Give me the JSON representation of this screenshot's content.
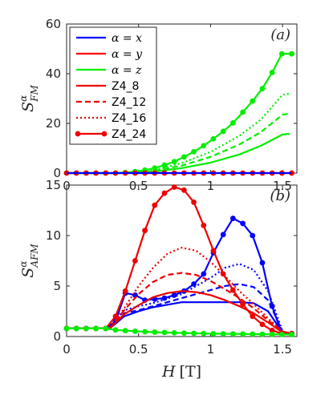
{
  "chart_data": [
    {
      "type": "line",
      "panel_label": "(a)",
      "ylabel_base": "S",
      "ylabel_sup": "α",
      "ylabel_sub": "FM",
      "xlim": [
        0,
        1.6
      ],
      "ylim": [
        0,
        60
      ],
      "xticks": [
        "0",
        "0.5",
        "1",
        "1.5"
      ],
      "yticks": [
        "0",
        "20",
        "40",
        "60"
      ],
      "legend": {
        "position": "upper-left",
        "entries": [
          {
            "label": "α = x",
            "color": "#0000ff",
            "style": "solid"
          },
          {
            "label": "α = y",
            "color": "#ff0000",
            "style": "solid"
          },
          {
            "label": "α = z",
            "color": "#00ee00",
            "style": "solid"
          },
          {
            "label": "Z4_8",
            "color": "#ee0000",
            "style": "solid"
          },
          {
            "label": "Z4_12",
            "color": "#ee0000",
            "style": "dashed"
          },
          {
            "label": "Z4_16",
            "color": "#ee0000",
            "style": "dotted"
          },
          {
            "label": "Z4_24",
            "color": "#ee0000",
            "style": "solid-marker"
          }
        ]
      },
      "series": [
        {
          "color": "#00ee00",
          "style": "solid",
          "x": [
            0,
            0.3,
            0.5,
            0.6,
            0.8,
            1.0,
            1.2,
            1.35,
            1.5,
            1.55
          ],
          "y": [
            0,
            0,
            0.1,
            0.5,
            2.0,
            4.2,
            7.5,
            11.0,
            15.5,
            15.8
          ]
        },
        {
          "color": "#00ee00",
          "style": "dashed",
          "x": [
            0,
            0.3,
            0.5,
            0.6,
            0.8,
            1.0,
            1.2,
            1.35,
            1.5,
            1.55
          ],
          "y": [
            0,
            0,
            0.2,
            0.8,
            3.0,
            6.5,
            11.5,
            16.5,
            23.5,
            24
          ]
        },
        {
          "color": "#00ee00",
          "style": "dotted",
          "x": [
            0,
            0.3,
            0.5,
            0.6,
            0.8,
            1.0,
            1.2,
            1.35,
            1.5,
            1.55
          ],
          "y": [
            0,
            0,
            0.25,
            1.0,
            4.0,
            8.5,
            15.0,
            21.5,
            31.5,
            32
          ]
        },
        {
          "color": "#00ee00",
          "style": "marker",
          "x": [
            0,
            0.068,
            0.136,
            0.204,
            0.272,
            0.34,
            0.408,
            0.476,
            0.544,
            0.612,
            0.68,
            0.748,
            0.816,
            0.884,
            0.952,
            1.02,
            1.088,
            1.156,
            1.224,
            1.292,
            1.36,
            1.428,
            1.496,
            1.564
          ],
          "y": [
            0,
            0,
            0,
            0,
            0,
            0,
            0.2,
            0.6,
            1.2,
            2.0,
            3.2,
            4.6,
            6.5,
            8.6,
            11.0,
            13.8,
            16.8,
            20.2,
            24.5,
            29,
            34,
            40.5,
            48,
            48
          ]
        },
        {
          "color": "#ee0000",
          "style": "marker",
          "x": [
            0,
            0.068,
            0.136,
            0.204,
            0.272,
            0.34,
            0.408,
            0.476,
            0.544,
            0.612,
            0.68,
            0.748,
            0.816,
            0.884,
            0.952,
            1.02,
            1.088,
            1.156,
            1.224,
            1.292,
            1.36,
            1.428,
            1.496,
            1.564
          ],
          "y": [
            0,
            0,
            0,
            0,
            0,
            0,
            0,
            0,
            0,
            0,
            0,
            0,
            0,
            0,
            0,
            0,
            0,
            0,
            0,
            0,
            0,
            0,
            0,
            0
          ]
        },
        {
          "color": "#0000ff",
          "style": "solid",
          "x": [
            0,
            1.564
          ],
          "y": [
            0,
            0
          ]
        }
      ]
    },
    {
      "type": "line",
      "panel_label": "(b)",
      "ylabel_base": "S",
      "ylabel_sup": "α",
      "ylabel_sub": "AFM",
      "xlabel_var": "H",
      "xlabel_unit": "[T]",
      "xlim": [
        0,
        1.6
      ],
      "ylim": [
        0,
        15
      ],
      "xticks": [
        "0",
        "0.5",
        "1",
        "1.5"
      ],
      "yticks": [
        "0",
        "5",
        "10",
        "15"
      ],
      "series": [
        {
          "color": "#0000ff",
          "style": "marker",
          "x": [
            0,
            0.068,
            0.136,
            0.204,
            0.272,
            0.34,
            0.408,
            0.476,
            0.544,
            0.612,
            0.68,
            0.748,
            0.816,
            0.884,
            0.952,
            1.02,
            1.088,
            1.156,
            1.224,
            1.292,
            1.36,
            1.428,
            1.496,
            1.564
          ],
          "y": [
            0.8,
            0.8,
            0.8,
            0.8,
            0.8,
            1.5,
            4.3,
            4.1,
            3.6,
            3.7,
            3.8,
            4.1,
            4.5,
            5.2,
            6.2,
            8.3,
            10.1,
            11.7,
            11.2,
            10.0,
            7.3,
            3.0,
            0.3,
            0.3
          ]
        },
        {
          "color": "#0000ff",
          "style": "dotted",
          "x": [
            0,
            0.3,
            0.4,
            0.5,
            0.6,
            0.8,
            1.0,
            1.1,
            1.2,
            1.3,
            1.4,
            1.5,
            1.56
          ],
          "y": [
            0.8,
            0.8,
            2.6,
            3.0,
            3.3,
            4.2,
            5.8,
            6.8,
            7.2,
            6.6,
            4.5,
            0.5,
            0.3
          ]
        },
        {
          "color": "#0000ff",
          "style": "dashed",
          "x": [
            0,
            0.3,
            0.4,
            0.5,
            0.6,
            0.8,
            1.0,
            1.1,
            1.2,
            1.3,
            1.4,
            1.5,
            1.56
          ],
          "y": [
            0.8,
            0.8,
            2.3,
            2.6,
            3.0,
            3.8,
            4.6,
            5.0,
            5.2,
            4.9,
            3.6,
            0.5,
            0.3
          ]
        },
        {
          "color": "#0000ff",
          "style": "solid",
          "x": [
            0,
            0.3,
            0.4,
            0.5,
            0.6,
            0.8,
            1.0,
            1.1,
            1.2,
            1.3,
            1.4,
            1.5,
            1.56
          ],
          "y": [
            0.8,
            0.8,
            2.0,
            2.5,
            2.9,
            3.4,
            3.4,
            3.4,
            3.4,
            3.3,
            2.5,
            0.4,
            0.3
          ]
        },
        {
          "color": "#ee0000",
          "style": "marker",
          "x": [
            0,
            0.068,
            0.136,
            0.204,
            0.272,
            0.34,
            0.408,
            0.476,
            0.544,
            0.612,
            0.68,
            0.748,
            0.816,
            0.884,
            0.952,
            1.02,
            1.088,
            1.156,
            1.224,
            1.292,
            1.36,
            1.428,
            1.496,
            1.564
          ],
          "y": [
            0.8,
            0.8,
            0.8,
            0.8,
            0.8,
            2.0,
            4.5,
            7.5,
            10.5,
            13.0,
            14.2,
            14.8,
            14.5,
            13.3,
            11.0,
            8.5,
            6.2,
            4.6,
            3.2,
            2.0,
            1.2,
            0.6,
            0.3,
            0.3
          ]
        },
        {
          "color": "#ee0000",
          "style": "dotted",
          "x": [
            0,
            0.3,
            0.4,
            0.5,
            0.6,
            0.7,
            0.8,
            0.9,
            1.0,
            1.1,
            1.2,
            1.3,
            1.4,
            1.5,
            1.56
          ],
          "y": [
            0.8,
            0.8,
            2.8,
            5.0,
            6.8,
            8.2,
            8.8,
            8.5,
            7.4,
            6.0,
            4.5,
            3.2,
            1.8,
            0.5,
            0.3
          ]
        },
        {
          "color": "#ee0000",
          "style": "dashed",
          "x": [
            0,
            0.3,
            0.4,
            0.5,
            0.6,
            0.7,
            0.8,
            0.9,
            1.0,
            1.1,
            1.2,
            1.3,
            1.4,
            1.5,
            1.56
          ],
          "y": [
            0.8,
            0.8,
            2.6,
            4.2,
            5.4,
            6.1,
            6.3,
            6.1,
            5.5,
            4.7,
            3.8,
            2.8,
            1.6,
            0.5,
            0.3
          ]
        },
        {
          "color": "#ee0000",
          "style": "solid",
          "x": [
            0,
            0.3,
            0.4,
            0.5,
            0.6,
            0.7,
            0.8,
            0.9,
            1.0,
            1.1,
            1.2,
            1.3,
            1.4,
            1.5,
            1.56
          ],
          "y": [
            0.8,
            0.8,
            2.2,
            3.1,
            3.9,
            4.3,
            4.5,
            4.4,
            4.1,
            3.6,
            3.0,
            2.3,
            1.4,
            0.4,
            0.3
          ]
        },
        {
          "color": "#00ee00",
          "style": "marker",
          "x": [
            0,
            0.068,
            0.136,
            0.204,
            0.272,
            0.34,
            0.408,
            0.476,
            0.544,
            0.612,
            0.68,
            0.748,
            0.816,
            0.884,
            0.952,
            1.02,
            1.088,
            1.156,
            1.224,
            1.292,
            1.36,
            1.428,
            1.496,
            1.564
          ],
          "y": [
            0.8,
            0.8,
            0.8,
            0.8,
            0.8,
            0.65,
            0.58,
            0.52,
            0.47,
            0.43,
            0.4,
            0.37,
            0.34,
            0.32,
            0.3,
            0.28,
            0.27,
            0.26,
            0.25,
            0.24,
            0.23,
            0.22,
            0.21,
            0.2
          ]
        }
      ]
    }
  ]
}
